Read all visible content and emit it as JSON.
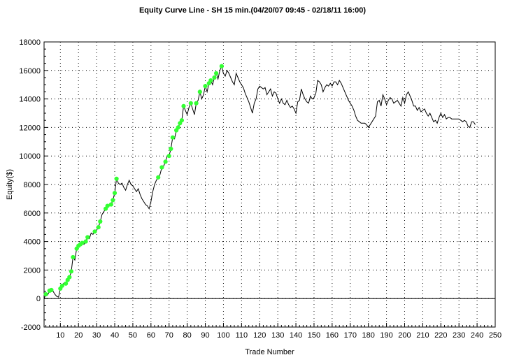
{
  "chart_data": {
    "type": "line",
    "title": "Equity Curve Line - SH 15 min.(04/20/07 09:45 - 02/18/11 16:00)",
    "xlabel": "Trade Number",
    "ylabel": "Equity($)",
    "xlim": [
      1,
      250
    ],
    "ylim": [
      -2000,
      18000
    ],
    "x_ticks": [
      10,
      20,
      30,
      40,
      50,
      60,
      70,
      80,
      90,
      100,
      110,
      120,
      130,
      140,
      150,
      160,
      170,
      180,
      190,
      200,
      210,
      220,
      230,
      240,
      250
    ],
    "y_ticks": [
      -2000,
      0,
      2000,
      4000,
      6000,
      8000,
      10000,
      12000,
      14000,
      16000,
      18000
    ],
    "grid": true,
    "line_color": "#000000",
    "marker_color": "#33ff33",
    "series": [
      {
        "points": [
          [
            1,
            0
          ],
          [
            2,
            300
          ],
          [
            3,
            250
          ],
          [
            4,
            550
          ],
          [
            5,
            600
          ],
          [
            6,
            500
          ],
          [
            7,
            300
          ],
          [
            8,
            150
          ],
          [
            9,
            100
          ],
          [
            10,
            700
          ],
          [
            11,
            900
          ],
          [
            12,
            1100
          ],
          [
            13,
            1050
          ],
          [
            14,
            1300
          ],
          [
            15,
            1500
          ],
          [
            16,
            1900
          ],
          [
            17,
            2900
          ],
          [
            18,
            2700
          ],
          [
            19,
            3500
          ],
          [
            20,
            3700
          ],
          [
            21,
            3800
          ],
          [
            22,
            3900
          ],
          [
            23,
            3800
          ],
          [
            24,
            4000
          ],
          [
            25,
            4300
          ],
          [
            26,
            4200
          ],
          [
            27,
            4600
          ],
          [
            28,
            4500
          ],
          [
            29,
            4700
          ],
          [
            30,
            4800
          ],
          [
            31,
            5000
          ],
          [
            32,
            5400
          ],
          [
            33,
            5900
          ],
          [
            34,
            6100
          ],
          [
            35,
            6300
          ],
          [
            36,
            6500
          ],
          [
            37,
            6500
          ],
          [
            38,
            6600
          ],
          [
            39,
            6900
          ],
          [
            40,
            7400
          ],
          [
            41,
            8400
          ],
          [
            42,
            8100
          ],
          [
            43,
            8000
          ],
          [
            44,
            8100
          ],
          [
            45,
            7800
          ],
          [
            46,
            7600
          ],
          [
            47,
            8000
          ],
          [
            48,
            8300
          ],
          [
            49,
            8000
          ],
          [
            50,
            7900
          ],
          [
            51,
            7700
          ],
          [
            52,
            7500
          ],
          [
            53,
            7700
          ],
          [
            54,
            7300
          ],
          [
            55,
            7000
          ],
          [
            56,
            6800
          ],
          [
            57,
            6600
          ],
          [
            58,
            6500
          ],
          [
            59,
            6300
          ],
          [
            60,
            6800
          ],
          [
            61,
            7500
          ],
          [
            62,
            8000
          ],
          [
            63,
            8300
          ],
          [
            64,
            8500
          ],
          [
            65,
            8700
          ],
          [
            66,
            9200
          ],
          [
            67,
            9300
          ],
          [
            68,
            9600
          ],
          [
            69,
            10000
          ],
          [
            70,
            10000
          ],
          [
            71,
            10500
          ],
          [
            72,
            11300
          ],
          [
            73,
            11200
          ],
          [
            74,
            11800
          ],
          [
            75,
            12000
          ],
          [
            76,
            12300
          ],
          [
            77,
            12500
          ],
          [
            78,
            13500
          ],
          [
            79,
            13200
          ],
          [
            80,
            12900
          ],
          [
            81,
            13400
          ],
          [
            82,
            13700
          ],
          [
            83,
            13300
          ],
          [
            84,
            12900
          ],
          [
            85,
            13700
          ],
          [
            86,
            13900
          ],
          [
            87,
            14500
          ],
          [
            88,
            14000
          ],
          [
            89,
            14300
          ],
          [
            90,
            14900
          ],
          [
            91,
            14500
          ],
          [
            92,
            15100
          ],
          [
            93,
            15300
          ],
          [
            94,
            15000
          ],
          [
            95,
            15500
          ],
          [
            96,
            15800
          ],
          [
            97,
            15400
          ],
          [
            98,
            16000
          ],
          [
            99,
            16300
          ],
          [
            100,
            15800
          ],
          [
            101,
            15600
          ],
          [
            102,
            16000
          ],
          [
            103,
            15800
          ],
          [
            104,
            15500
          ],
          [
            105,
            15200
          ],
          [
            106,
            15000
          ],
          [
            107,
            15800
          ],
          [
            108,
            15500
          ],
          [
            109,
            15200
          ],
          [
            110,
            15000
          ],
          [
            111,
            14800
          ],
          [
            112,
            14400
          ],
          [
            113,
            14100
          ],
          [
            114,
            13800
          ],
          [
            115,
            13400
          ],
          [
            116,
            13000
          ],
          [
            117,
            13700
          ],
          [
            118,
            14000
          ],
          [
            119,
            14700
          ],
          [
            120,
            14900
          ],
          [
            121,
            14800
          ],
          [
            122,
            14700
          ],
          [
            123,
            14800
          ],
          [
            124,
            14300
          ],
          [
            125,
            14500
          ],
          [
            126,
            14700
          ],
          [
            127,
            14200
          ],
          [
            128,
            14500
          ],
          [
            129,
            14400
          ],
          [
            130,
            14000
          ],
          [
            131,
            13700
          ],
          [
            132,
            14000
          ],
          [
            133,
            13700
          ],
          [
            134,
            13600
          ],
          [
            135,
            13900
          ],
          [
            136,
            13600
          ],
          [
            137,
            13400
          ],
          [
            138,
            13500
          ],
          [
            139,
            13300
          ],
          [
            140,
            13000
          ],
          [
            141,
            13800
          ],
          [
            142,
            13900
          ],
          [
            143,
            14700
          ],
          [
            144,
            14300
          ],
          [
            145,
            14000
          ],
          [
            146,
            13800
          ],
          [
            147,
            13700
          ],
          [
            148,
            14200
          ],
          [
            149,
            14000
          ],
          [
            150,
            14100
          ],
          [
            151,
            14400
          ],
          [
            152,
            15300
          ],
          [
            153,
            15200
          ],
          [
            154,
            15000
          ],
          [
            155,
            14500
          ],
          [
            156,
            14800
          ],
          [
            157,
            15000
          ],
          [
            158,
            14900
          ],
          [
            159,
            15100
          ],
          [
            160,
            14900
          ],
          [
            161,
            15200
          ],
          [
            162,
            15200
          ],
          [
            163,
            15000
          ],
          [
            164,
            15300
          ],
          [
            165,
            15100
          ],
          [
            166,
            14800
          ],
          [
            167,
            14500
          ],
          [
            168,
            14200
          ],
          [
            169,
            13900
          ],
          [
            170,
            13700
          ],
          [
            171,
            13500
          ],
          [
            172,
            13200
          ],
          [
            173,
            12800
          ],
          [
            174,
            12500
          ],
          [
            175,
            12400
          ],
          [
            176,
            12300
          ],
          [
            177,
            12300
          ],
          [
            178,
            12300
          ],
          [
            179,
            12200
          ],
          [
            180,
            12000
          ],
          [
            181,
            12200
          ],
          [
            182,
            12400
          ],
          [
            183,
            12600
          ],
          [
            184,
            12800
          ],
          [
            185,
            13800
          ],
          [
            186,
            13900
          ],
          [
            187,
            13500
          ],
          [
            188,
            14300
          ],
          [
            189,
            14000
          ],
          [
            190,
            13600
          ],
          [
            191,
            13900
          ],
          [
            192,
            14100
          ],
          [
            193,
            14000
          ],
          [
            194,
            13700
          ],
          [
            195,
            13800
          ],
          [
            196,
            13900
          ],
          [
            197,
            13700
          ],
          [
            198,
            13500
          ],
          [
            199,
            14100
          ],
          [
            200,
            13700
          ],
          [
            201,
            14300
          ],
          [
            202,
            14500
          ],
          [
            203,
            14200
          ],
          [
            204,
            13900
          ],
          [
            205,
            13500
          ],
          [
            206,
            13500
          ],
          [
            207,
            13200
          ],
          [
            208,
            13400
          ],
          [
            209,
            13100
          ],
          [
            210,
            13200
          ],
          [
            211,
            13300
          ],
          [
            212,
            13000
          ],
          [
            213,
            12800
          ],
          [
            214,
            13000
          ],
          [
            215,
            12700
          ],
          [
            216,
            12400
          ],
          [
            217,
            12500
          ],
          [
            218,
            12300
          ],
          [
            219,
            12700
          ],
          [
            220,
            13000
          ],
          [
            221,
            12700
          ],
          [
            222,
            12900
          ],
          [
            223,
            12600
          ],
          [
            224,
            12700
          ],
          [
            225,
            12700
          ],
          [
            226,
            12600
          ],
          [
            227,
            12600
          ],
          [
            228,
            12600
          ],
          [
            229,
            12600
          ],
          [
            230,
            12600
          ],
          [
            231,
            12500
          ],
          [
            232,
            12400
          ],
          [
            233,
            12500
          ],
          [
            234,
            12400
          ],
          [
            235,
            12100
          ],
          [
            236,
            12000
          ],
          [
            237,
            12400
          ],
          [
            238,
            12400
          ],
          [
            239,
            12200
          ]
        ],
        "highlighted_x": [
          2,
          4,
          5,
          10,
          11,
          13,
          14,
          15,
          16,
          17,
          19,
          20,
          21,
          22,
          24,
          25,
          29,
          31,
          32,
          35,
          36,
          38,
          39,
          40,
          41,
          64,
          66,
          68,
          70,
          71,
          72,
          74,
          75,
          76,
          77,
          78,
          82,
          85,
          87,
          90,
          92,
          93,
          95,
          96,
          99
        ]
      }
    ]
  }
}
